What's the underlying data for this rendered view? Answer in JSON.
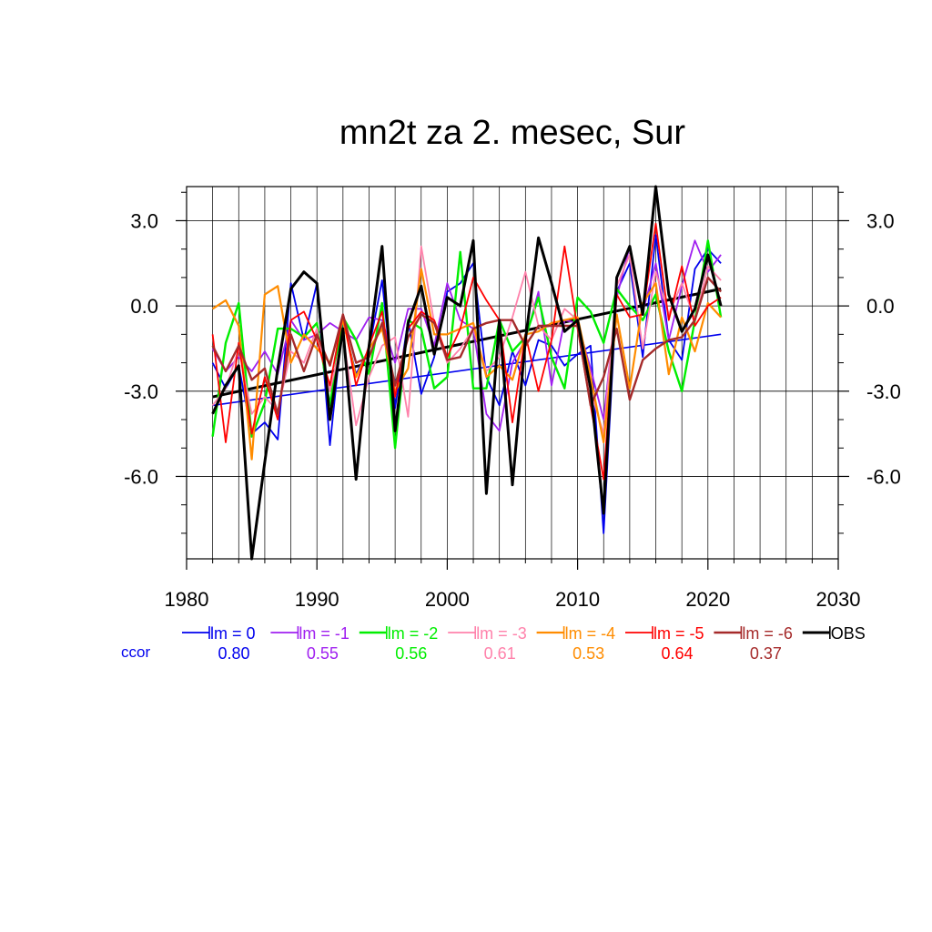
{
  "chart_data": {
    "type": "line",
    "title": "mn2t za 2. mesec, Sur",
    "xlim": [
      1980,
      2030
    ],
    "ylim": [
      -8.9,
      4.2
    ],
    "x_ticks": [
      1980,
      1990,
      2000,
      2010,
      2020,
      2030
    ],
    "x_tick_labels": [
      "1980",
      "1990",
      "2000",
      "2010",
      "2020",
      "2030"
    ],
    "y_ticks": [
      3,
      0,
      -3,
      -6
    ],
    "y_tick_labels": [
      "3.0",
      "0.0",
      "-3.0",
      "-6.0"
    ],
    "grid": true,
    "ccor_label": "ccor",
    "x": [
      1982,
      1983,
      1984,
      1985,
      1986,
      1987,
      1988,
      1989,
      1990,
      1991,
      1992,
      1993,
      1994,
      1995,
      1996,
      1997,
      1998,
      1999,
      2000,
      2001,
      2002,
      2003,
      2004,
      2005,
      2006,
      2007,
      2008,
      2009,
      2010,
      2011,
      2012,
      2013,
      2014,
      2015,
      2016,
      2017,
      2018,
      2019,
      2020,
      2021
    ],
    "series": [
      {
        "name": "lm = 0",
        "color": "#0000ee",
        "width": 1.8,
        "ccor": "0.80",
        "values": [
          -2.0,
          -2.9,
          -2.1,
          -4.5,
          -4.1,
          -4.7,
          0.8,
          -1.2,
          0.8,
          -4.9,
          -0.5,
          -2.4,
          -1.5,
          0.9,
          -3.6,
          -0.5,
          -3.1,
          -1.8,
          0.5,
          0.8,
          1.5,
          -2.5,
          -3.5,
          -1.6,
          -2.8,
          -1.2,
          -1.4,
          -2.1,
          -1.7,
          -1.4,
          -8.0,
          0.5,
          1.5,
          -1.8,
          2.5,
          -1.2,
          -1.9,
          1.3,
          2.0,
          1.5
        ]
      },
      {
        "name": "lm = -1",
        "color": "#a020f0",
        "width": 1.8,
        "ccor": "0.55",
        "values": [
          -1.5,
          -2.3,
          -1.8,
          -2.3,
          -1.6,
          -2.4,
          -0.5,
          -1.2,
          -1.0,
          -0.6,
          -0.9,
          -1.2,
          -0.4,
          -0.5,
          -2.0,
          -0.1,
          -0.1,
          -1.4,
          0.8,
          -0.5,
          -0.8,
          -3.8,
          -4.4,
          -2.0,
          -1.2,
          0.5,
          -2.8,
          -0.5,
          -0.6,
          -2.2,
          -4.0,
          0.3,
          2.1,
          -0.2,
          1.5,
          -1.2,
          0.7,
          2.3,
          1.2,
          1.8
        ]
      },
      {
        "name": "lm = -2",
        "color": "#00ee00",
        "width": 2.4,
        "ccor": "0.56",
        "values": [
          -4.6,
          -1.3,
          0.1,
          -4.6,
          -3.4,
          -0.8,
          -0.8,
          -1.1,
          -0.6,
          -3.5,
          -0.4,
          -1.2,
          -2.4,
          0.1,
          -5.0,
          -0.5,
          -0.8,
          -2.9,
          -2.5,
          1.9,
          -2.9,
          -2.9,
          -0.5,
          -1.6,
          -1.1,
          0.3,
          -1.8,
          -2.9,
          0.3,
          -0.2,
          -1.3,
          0.6,
          0.0,
          -0.5,
          0.4,
          -1.6,
          -3.0,
          -0.5,
          2.3,
          -0.4
        ]
      },
      {
        "name": "lm = -3",
        "color": "#ff82ab",
        "width": 1.8,
        "ccor": "0.61",
        "values": [
          -3.5,
          -2.9,
          -1.5,
          -3.8,
          -3.2,
          -3.7,
          -1.6,
          -2.0,
          -0.8,
          -3.0,
          -1.0,
          -4.2,
          -2.5,
          -1.4,
          -1.1,
          -3.9,
          2.1,
          -0.6,
          -2.0,
          -1.5,
          -0.8,
          -2.3,
          -1.8,
          -0.4,
          1.2,
          -0.7,
          -1.2,
          -0.1,
          -0.5,
          -3.0,
          -4.5,
          0.7,
          1.8,
          -1.5,
          1.2,
          -0.3,
          0.8,
          -0.5,
          1.4,
          0.9
        ]
      },
      {
        "name": "lm = -4",
        "color": "#ff8c00",
        "width": 2.2,
        "ccor": "0.53",
        "values": [
          -0.1,
          0.2,
          -0.7,
          -5.4,
          0.4,
          0.7,
          -2.0,
          -1.0,
          -1.5,
          -2.0,
          -0.5,
          -2.5,
          -1.5,
          -0.8,
          -3.0,
          -2.2,
          1.3,
          -1.0,
          -1.0,
          -0.8,
          -0.6,
          -2.5,
          -2.1,
          -2.6,
          -1.0,
          -0.9,
          -0.6,
          -0.5,
          -0.4,
          -2.5,
          -4.8,
          -0.3,
          -2.9,
          0.1,
          0.8,
          -2.4,
          -0.4,
          -1.6,
          0.1,
          -0.4
        ]
      },
      {
        "name": "lm = -5",
        "color": "#ff0000",
        "width": 1.8,
        "ccor": "0.64",
        "values": [
          -1.0,
          -4.8,
          -1.3,
          -4.5,
          -2.5,
          -4.0,
          -0.5,
          -0.2,
          -1.2,
          -2.8,
          -0.3,
          -2.8,
          -1.4,
          -0.2,
          -3.2,
          -0.8,
          -0.2,
          -0.5,
          -1.8,
          -0.8,
          1.0,
          0.2,
          -0.5,
          -4.1,
          -1.0,
          -3.0,
          -1.2,
          2.1,
          -0.8,
          -3.5,
          -6.1,
          0.4,
          -0.4,
          -0.3,
          2.9,
          -0.5,
          1.4,
          -0.7,
          0.0,
          0.3
        ]
      },
      {
        "name": "lm = -6",
        "color": "#a52a2a",
        "width": 2.4,
        "ccor": "0.37",
        "values": [
          -1.4,
          -2.3,
          -1.4,
          -2.6,
          -2.2,
          -3.8,
          -1.0,
          -2.3,
          -1.0,
          -2.1,
          -0.3,
          -2.0,
          -1.8,
          -0.6,
          -2.8,
          -1.1,
          -0.3,
          -0.6,
          -1.9,
          -1.8,
          -0.8,
          -0.6,
          -0.5,
          -0.5,
          -1.4,
          -0.7,
          -0.7,
          -0.7,
          -0.7,
          -3.5,
          -2.5,
          -0.8,
          -3.3,
          -1.9,
          -1.5,
          -1.2,
          -1.1,
          -0.5,
          1.0,
          0.5
        ]
      },
      {
        "name": "OBS",
        "color": "#000000",
        "width": 3.0,
        "ccor": "",
        "values": [
          -3.8,
          -2.8,
          -2.1,
          -8.9,
          -5.5,
          -2.2,
          0.6,
          1.2,
          0.8,
          -4.0,
          -0.8,
          -6.1,
          -1.4,
          2.1,
          -4.4,
          -0.6,
          0.7,
          -1.7,
          0.3,
          0.0,
          2.3,
          -6.6,
          -0.5,
          -6.3,
          -1.2,
          2.4,
          0.8,
          -0.9,
          -0.5,
          -2.9,
          -7.3,
          1.0,
          2.1,
          -0.3,
          4.2,
          0.4,
          -0.9,
          -0.1,
          1.8,
          0.0
        ]
      }
    ],
    "trends": [
      {
        "series": "lm = 0",
        "color": "#0000ee",
        "width": 1.6,
        "x": [
          1982,
          2021
        ],
        "y": [
          -3.5,
          -1.0
        ]
      },
      {
        "series": "OBS",
        "color": "#000000",
        "width": 3.0,
        "x": [
          1982,
          2021
        ],
        "y": [
          -3.2,
          0.6
        ]
      }
    ]
  }
}
